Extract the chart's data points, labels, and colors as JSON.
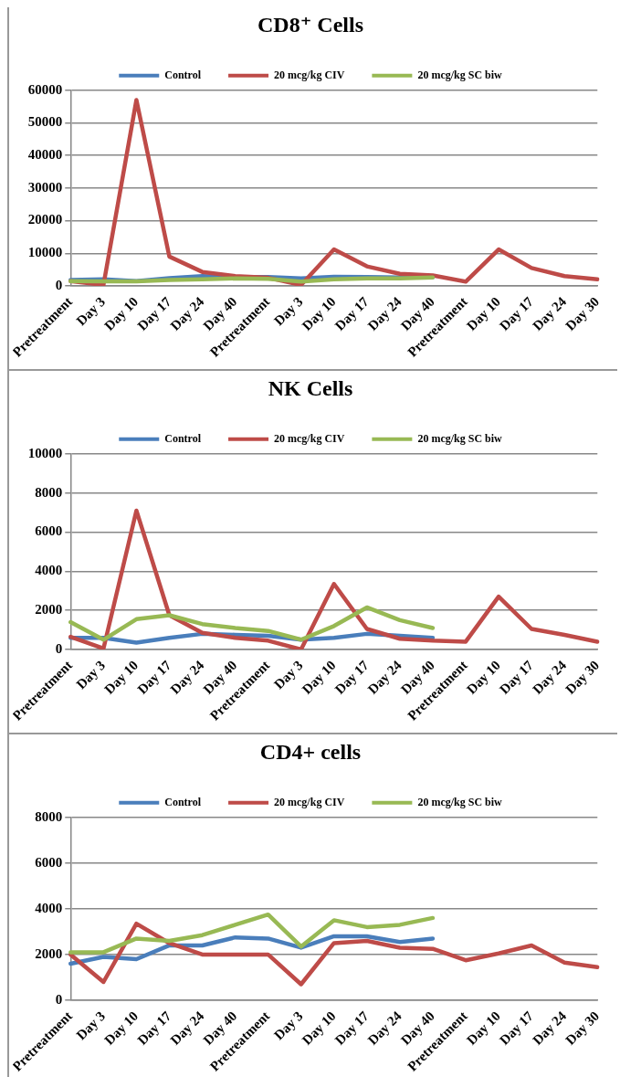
{
  "chart_data": [
    {
      "type": "line",
      "title": "CD8⁺ Cells",
      "categories": [
        "Pretreatment",
        "Day 3",
        "Day 10",
        "Day 17",
        "Day 24",
        "Day 40",
        "Pretreatment",
        "Day 3",
        "Day 10",
        "Day 17",
        "Day 24",
        "Day 40",
        "Pretreatment",
        "Day 10",
        "Day 17",
        "Day 24",
        "Day 30"
      ],
      "ylim": [
        0,
        60000
      ],
      "yticks": [
        0,
        10000,
        20000,
        30000,
        40000,
        50000,
        60000
      ],
      "grid": "y",
      "legend": "top",
      "marker": "none",
      "line_style": "solid",
      "series": [
        {
          "name": "Control",
          "color": "#4a7ebb",
          "values": [
            1800,
            2000,
            1500,
            2400,
            3000,
            2700,
            2700,
            2300,
            2800,
            2700,
            2600,
            2700,
            null,
            null,
            null,
            null,
            null
          ]
        },
        {
          "name": "20 mcg/kg CIV",
          "color": "#be4b48",
          "values": [
            1500,
            300,
            57000,
            9000,
            4300,
            3000,
            2500,
            300,
            11200,
            6000,
            3700,
            3200,
            1300,
            11200,
            5500,
            3000,
            2000
          ]
        },
        {
          "name": "20 mcg/kg SC biw",
          "color": "#98b954",
          "values": [
            1500,
            1400,
            1400,
            1800,
            2000,
            2300,
            2200,
            1300,
            2000,
            2300,
            2300,
            2600,
            null,
            null,
            null,
            null,
            null
          ]
        }
      ]
    },
    {
      "type": "line",
      "title": "NK Cells",
      "categories": [
        "Pretreatment",
        "Day 3",
        "Day 10",
        "Day 17",
        "Day 24",
        "Day 40",
        "Pretreatment",
        "Day 3",
        "Day 10",
        "Day 17",
        "Day 24",
        "Day 40",
        "Pretreatment",
        "Day 10",
        "Day 17",
        "Day 24",
        "Day 30"
      ],
      "ylim": [
        0,
        10000
      ],
      "yticks": [
        0,
        2000,
        4000,
        6000,
        8000,
        10000
      ],
      "grid": "y",
      "legend": "top",
      "marker": "none",
      "line_style": "solid",
      "series": [
        {
          "name": "Control",
          "color": "#4a7ebb",
          "values": [
            600,
            600,
            350,
            600,
            800,
            750,
            700,
            500,
            600,
            800,
            700,
            600,
            null,
            null,
            null,
            null,
            null
          ]
        },
        {
          "name": "20 mcg/kg CIV",
          "color": "#be4b48",
          "values": [
            650,
            50,
            7100,
            1750,
            850,
            600,
            450,
            0,
            3350,
            1050,
            550,
            450,
            400,
            2700,
            1050,
            750,
            400
          ]
        },
        {
          "name": "20 mcg/kg SC biw",
          "color": "#98b954",
          "values": [
            1400,
            500,
            1550,
            1750,
            1300,
            1100,
            950,
            500,
            1200,
            2150,
            1500,
            1100,
            null,
            null,
            null,
            null,
            null
          ]
        }
      ]
    },
    {
      "type": "line",
      "title": "CD4+ cells",
      "categories": [
        "Pretreatment",
        "Day 3",
        "Day 10",
        "Day 17",
        "Day 24",
        "Day 40",
        "Pretreatment",
        "Day 3",
        "Day 10",
        "Day 17",
        "Day 24",
        "Day 40",
        "Pretreatment",
        "Day 10",
        "Day 17",
        "Day 24",
        "Day 30"
      ],
      "ylim": [
        0,
        8000
      ],
      "yticks": [
        0,
        2000,
        4000,
        6000,
        8000
      ],
      "grid": "y",
      "legend": "top",
      "marker": "none",
      "line_style": "solid",
      "series": [
        {
          "name": "Control",
          "color": "#4a7ebb",
          "values": [
            1600,
            1900,
            1800,
            2400,
            2400,
            2750,
            2700,
            2300,
            2800,
            2800,
            2550,
            2700,
            null,
            null,
            null,
            null,
            null
          ]
        },
        {
          "name": "20 mcg/kg CIV",
          "color": "#be4b48",
          "values": [
            2000,
            800,
            3350,
            2500,
            2000,
            2000,
            2000,
            700,
            2500,
            2600,
            2300,
            2250,
            1750,
            2050,
            2400,
            1650,
            1450
          ]
        },
        {
          "name": "20 mcg/kg SC biw",
          "color": "#98b954",
          "values": [
            2100,
            2100,
            2700,
            2600,
            2850,
            3300,
            3750,
            2350,
            3500,
            3200,
            3300,
            3600,
            null,
            null,
            null,
            null,
            null
          ]
        }
      ]
    }
  ]
}
